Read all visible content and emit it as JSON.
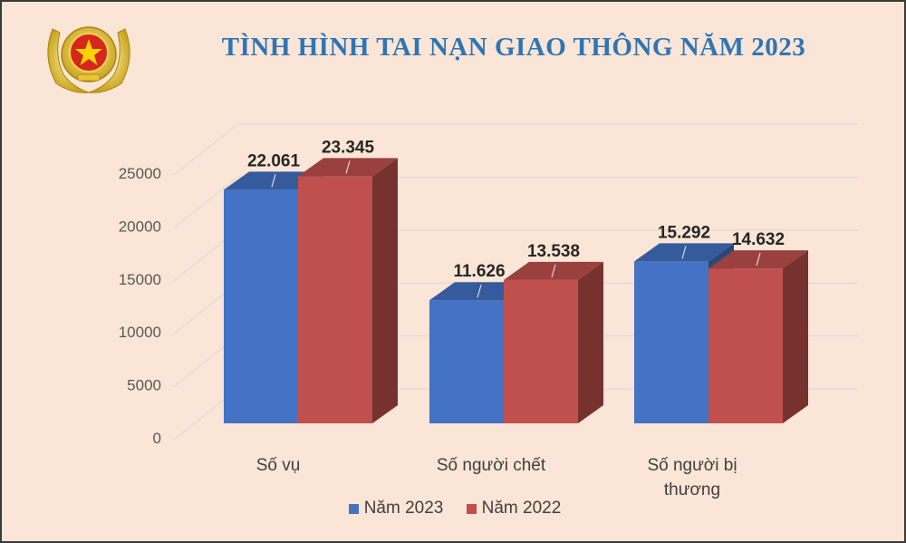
{
  "header": {
    "title": "TÌNH HÌNH TAI NẠN GIAO THÔNG NĂM 2023",
    "emblem_icon": "police-emblem-icon"
  },
  "chart_data": {
    "type": "bar",
    "style": "3d-clustered",
    "title": "TÌNH HÌNH TAI NẠN GIAO THÔNG NĂM 2023",
    "categories": [
      "Số vụ",
      "Số người chết",
      "Số người bị thương"
    ],
    "category_lines": [
      [
        "Số vụ"
      ],
      [
        "Số người chết"
      ],
      [
        "Số người bị",
        "thương"
      ]
    ],
    "series": [
      {
        "name": "Năm 2023",
        "color": "#4472c4",
        "values": [
          22061,
          11626,
          15292
        ],
        "labels": [
          "22.061",
          "11.626",
          "15.292"
        ]
      },
      {
        "name": "Năm 2022",
        "color": "#c0504d",
        "values": [
          23345,
          13538,
          14632
        ],
        "labels": [
          "23.345",
          "13.538",
          "14.632"
        ]
      }
    ],
    "yticks": [
      "0",
      "5000",
      "10000",
      "15000",
      "20000",
      "25000"
    ],
    "ylim": [
      0,
      25000
    ],
    "grid": true,
    "legend_position": "bottom"
  }
}
